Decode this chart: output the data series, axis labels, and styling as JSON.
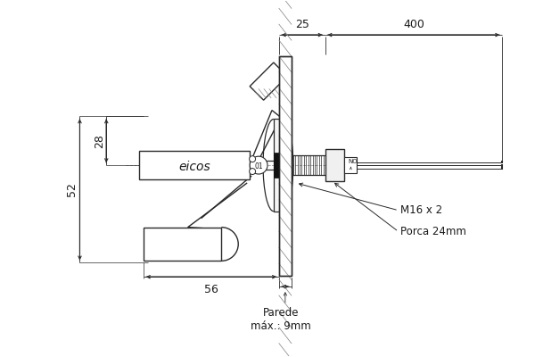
{
  "bg_color": "#ffffff",
  "line_color": "#2a2a2a",
  "dim_color": "#2a2a2a",
  "text_color": "#1a1a1a",
  "figsize": [
    6.0,
    4.0
  ],
  "dpi": 100,
  "annotations": {
    "dim_25": "25",
    "dim_400": "400",
    "dim_28": "28",
    "dim_52": "52",
    "dim_56": "56",
    "label_m16": "M16 x 2",
    "label_porca": "Porca 24mm",
    "label_parede": "Parede\nmáx.: 9mm",
    "label_eicos": "eicos"
  }
}
